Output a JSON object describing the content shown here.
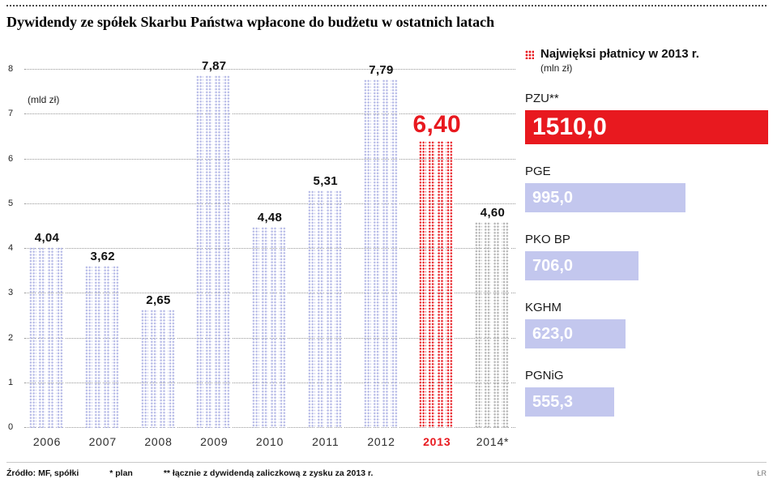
{
  "title": "Dywidendy ze spółek Skarbu Państwa wpłacone do budżetu w ostatnich latach",
  "colors": {
    "bar_default": "#b4b8e6",
    "bar_highlight": "#e8191f",
    "bar_plan": "#b3b3b3",
    "side_bar": "#c3c7ee",
    "side_bar_highlight": "#e8191f"
  },
  "icons": {
    "legend": "red-dots-icon"
  },
  "chart_data": [
    {
      "type": "bar",
      "title": "Dywidendy ze spółek Skarbu Państwa wpłacone do budżetu w ostatnich latach",
      "xlabel": "",
      "ylabel": "(mld zł)",
      "ylim": [
        0,
        8
      ],
      "yticks": [
        0,
        1,
        2,
        3,
        4,
        5,
        6,
        7,
        8
      ],
      "grid": "dotted horizontal",
      "categories": [
        "2006",
        "2007",
        "2008",
        "2009",
        "2010",
        "2011",
        "2012",
        "2013",
        "2014*"
      ],
      "values": [
        4.04,
        3.62,
        2.65,
        7.87,
        4.48,
        5.31,
        7.79,
        6.4,
        4.6
      ],
      "value_labels": [
        "4,04",
        "3,62",
        "2,65",
        "7,87",
        "4,48",
        "5,31",
        "7,79",
        "6,40",
        "4,60"
      ],
      "highlight_category": "2013",
      "plan_category": "2014*"
    },
    {
      "type": "bar",
      "title": "Najwięksi płatnicy w 2013 r.",
      "subtitle": "(mln zł)",
      "xlim": [
        0,
        1510
      ],
      "categories": [
        "PZU**",
        "PGE",
        "PKO BP",
        "KGHM",
        "PGNiG"
      ],
      "values": [
        1510.0,
        995.0,
        706.0,
        623.0,
        555.3
      ],
      "value_labels": [
        "1510,0",
        "995,0",
        "706,0",
        "623,0",
        "555,3"
      ],
      "highlight_category": "PZU**"
    }
  ],
  "footer": {
    "source": "Źródło: MF, spółki",
    "note1": "* plan",
    "note2": "** łącznie z dywidendą zaliczkową z zysku za 2013 r.",
    "credit": "ŁR"
  }
}
